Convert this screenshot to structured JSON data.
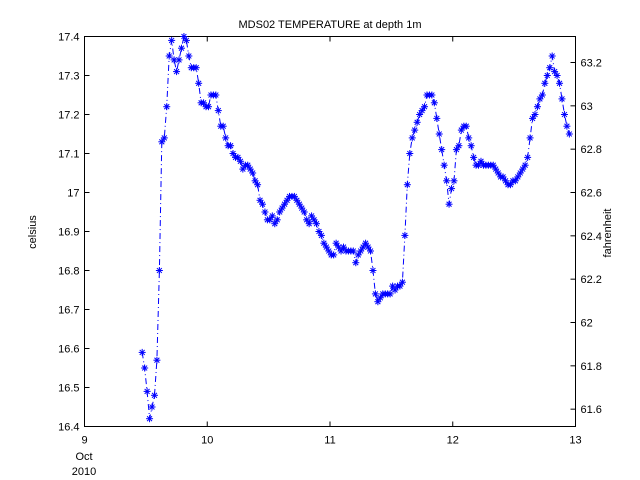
{
  "chart_data": {
    "type": "line",
    "title": "MDS02 TEMPERATURE at depth 1m",
    "ylabel": "celsius",
    "y2label": "fahrenheit",
    "xlim": [
      9,
      13
    ],
    "ylim": [
      16.4,
      17.4
    ],
    "y2lim": [
      61.52,
      63.32
    ],
    "x_ticks": [
      "9",
      "10",
      "11",
      "12",
      "13"
    ],
    "x_extra_labels": [
      "Oct",
      "2010"
    ],
    "y_ticks": [
      "16.4",
      "16.5",
      "16.6",
      "16.7",
      "16.8",
      "16.9",
      "17",
      "17.1",
      "17.2",
      "17.3",
      "17.4"
    ],
    "y2_ticks": [
      "61.6",
      "61.8",
      "62",
      "62.2",
      "62.4",
      "62.6",
      "62.8",
      "63",
      "63.2"
    ],
    "grid": false,
    "line_color": "#0000ff",
    "line_style": "dash-dot",
    "marker": "asterisk",
    "series": [
      {
        "x": [
          9.47,
          9.49,
          9.51,
          9.53,
          9.55,
          9.57,
          9.59,
          9.61,
          9.63,
          9.65,
          9.67,
          9.69,
          9.71,
          9.73,
          9.75,
          9.77,
          9.79,
          9.81,
          9.83,
          9.85,
          9.87,
          9.89,
          9.91,
          9.93,
          9.95,
          9.97,
          9.99,
          10.01,
          10.03,
          10.05,
          10.07,
          10.09,
          10.11,
          10.13,
          10.15,
          10.17,
          10.19,
          10.21,
          10.23,
          10.25,
          10.27,
          10.29,
          10.31,
          10.33,
          10.35,
          10.37,
          10.39,
          10.41,
          10.43,
          10.45,
          10.47,
          10.49,
          10.51,
          10.53,
          10.55,
          10.57,
          10.59,
          10.61,
          10.63,
          10.65,
          10.67,
          10.69,
          10.71,
          10.73,
          10.75,
          10.77,
          10.79,
          10.81,
          10.83,
          10.85,
          10.87,
          10.89,
          10.91,
          10.93,
          10.95,
          10.97,
          10.99,
          11.01,
          11.03,
          11.05,
          11.07,
          11.09,
          11.11,
          11.13,
          11.15,
          11.17,
          11.19,
          11.21,
          11.23,
          11.25,
          11.27,
          11.29,
          11.31,
          11.33,
          11.35,
          11.37,
          11.39,
          11.41,
          11.43,
          11.45,
          11.47,
          11.49,
          11.51,
          11.53,
          11.55,
          11.57,
          11.59,
          11.61,
          11.63,
          11.65,
          11.67,
          11.69,
          11.71,
          11.73,
          11.75,
          11.77,
          11.79,
          11.81,
          11.83,
          11.85,
          11.87,
          11.89,
          11.91,
          11.93,
          11.95,
          11.97,
          11.99,
          12.01,
          12.03,
          12.05,
          12.07,
          12.09,
          12.11,
          12.13,
          12.15,
          12.17,
          12.19,
          12.21,
          12.23,
          12.25,
          12.27,
          12.29,
          12.31,
          12.33,
          12.35,
          12.37,
          12.39,
          12.41,
          12.43,
          12.45,
          12.47,
          12.49,
          12.51,
          12.53,
          12.55,
          12.57,
          12.59,
          12.61,
          12.63,
          12.65,
          12.67,
          12.69,
          12.71,
          12.73,
          12.75,
          12.77,
          12.79,
          12.81,
          12.83,
          12.85,
          12.87,
          12.89,
          12.91,
          12.93,
          12.95
        ],
        "y": [
          16.59,
          16.55,
          16.49,
          16.42,
          16.45,
          16.48,
          16.57,
          16.8,
          17.13,
          17.14,
          17.22,
          17.35,
          17.39,
          17.34,
          17.31,
          17.34,
          17.37,
          17.4,
          17.39,
          17.35,
          17.32,
          17.32,
          17.32,
          17.28,
          17.23,
          17.23,
          17.22,
          17.22,
          17.25,
          17.25,
          17.25,
          17.21,
          17.17,
          17.17,
          17.14,
          17.12,
          17.12,
          17.1,
          17.09,
          17.09,
          17.08,
          17.06,
          17.07,
          17.07,
          17.06,
          17.05,
          17.03,
          17.02,
          16.98,
          16.97,
          16.95,
          16.93,
          16.93,
          16.94,
          16.92,
          16.93,
          16.95,
          16.96,
          16.97,
          16.98,
          16.99,
          16.99,
          16.99,
          16.98,
          16.97,
          16.96,
          16.95,
          16.93,
          16.92,
          16.94,
          16.93,
          16.92,
          16.9,
          16.89,
          16.87,
          16.86,
          16.85,
          16.84,
          16.84,
          16.87,
          16.86,
          16.85,
          16.86,
          16.85,
          16.85,
          16.85,
          16.85,
          16.82,
          16.84,
          16.85,
          16.86,
          16.87,
          16.86,
          16.85,
          16.8,
          16.74,
          16.72,
          16.73,
          16.74,
          16.74,
          16.74,
          16.74,
          16.76,
          16.75,
          16.76,
          16.76,
          16.77,
          16.89,
          17.02,
          17.1,
          17.14,
          17.16,
          17.18,
          17.2,
          17.21,
          17.22,
          17.25,
          17.25,
          17.25,
          17.23,
          17.19,
          17.15,
          17.11,
          17.07,
          17.03,
          16.97,
          17.01,
          17.03,
          17.11,
          17.12,
          17.16,
          17.17,
          17.17,
          17.14,
          17.12,
          17.09,
          17.07,
          17.07,
          17.08,
          17.07,
          17.07,
          17.07,
          17.07,
          17.07,
          17.06,
          17.05,
          17.04,
          17.04,
          17.03,
          17.02,
          17.02,
          17.03,
          17.03,
          17.04,
          17.05,
          17.06,
          17.07,
          17.09,
          17.14,
          17.19,
          17.2,
          17.22,
          17.24,
          17.25,
          17.28,
          17.3,
          17.32,
          17.35,
          17.31,
          17.3,
          17.28,
          17.24,
          17.2,
          17.17,
          17.15
        ]
      }
    ]
  }
}
